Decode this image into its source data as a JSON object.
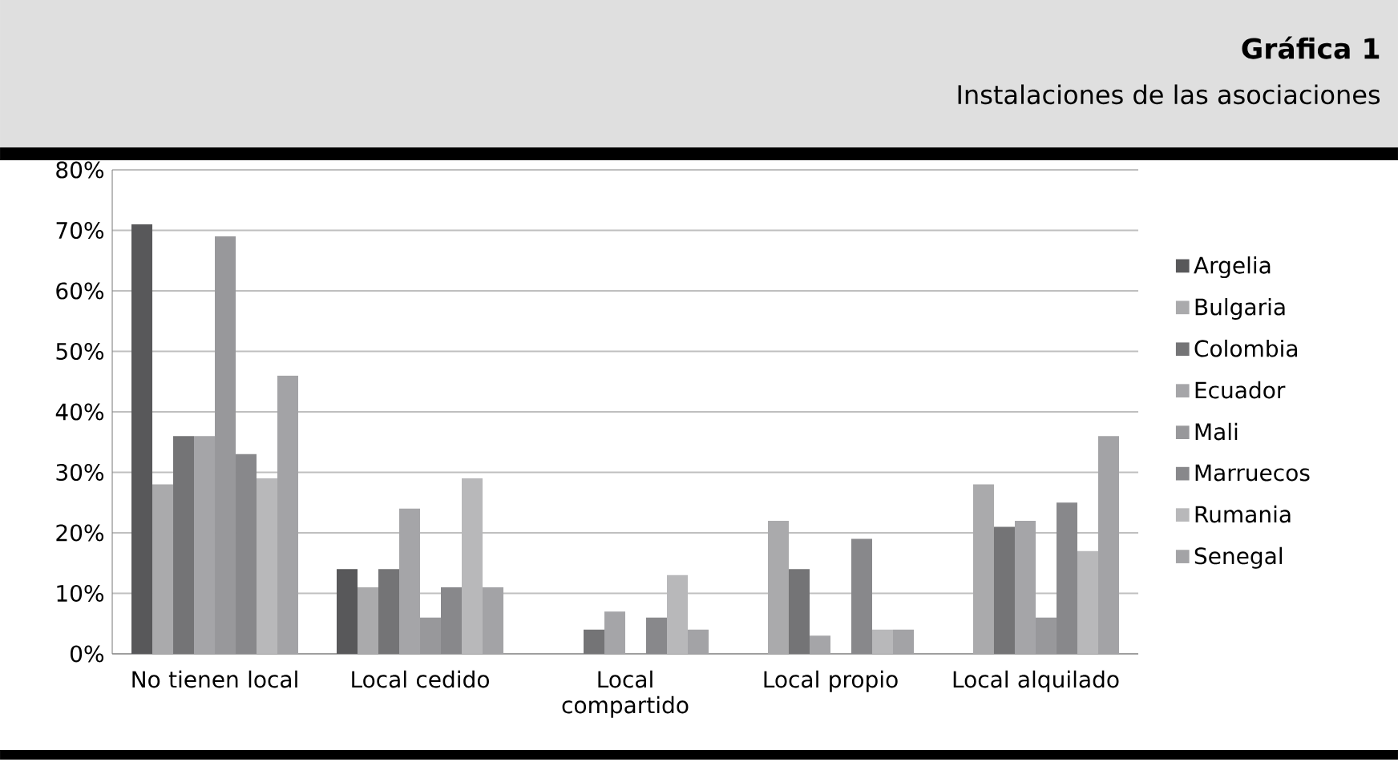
{
  "chart_data": {
    "type": "bar",
    "title": "Gráfica 1",
    "subtitle": "Instalaciones de las asociaciones",
    "categories": [
      "No tienen local",
      "Local cedido",
      "Local compartido",
      "Local propio",
      "Local alquilado"
    ],
    "series": [
      {
        "name": "Argelia",
        "color": "#58585a",
        "values": [
          71,
          14,
          null,
          null,
          null
        ]
      },
      {
        "name": "Bulgaria",
        "color": "#aaaaac",
        "values": [
          28,
          11,
          null,
          22,
          28
        ]
      },
      {
        "name": "Colombia",
        "color": "#747476",
        "values": [
          36,
          14,
          4,
          14,
          21
        ]
      },
      {
        "name": "Ecuador",
        "color": "#a5a5a8",
        "values": [
          36,
          24,
          7,
          3,
          22
        ]
      },
      {
        "name": "Mali",
        "color": "#98989b",
        "values": [
          69,
          6,
          null,
          null,
          6
        ]
      },
      {
        "name": "Marruecos",
        "color": "#88888b",
        "values": [
          33,
          11,
          6,
          19,
          25
        ]
      },
      {
        "name": "Rumania",
        "color": "#b8b8ba",
        "values": [
          29,
          29,
          13,
          4,
          17
        ]
      },
      {
        "name": "Senegal",
        "color": "#a3a3a6",
        "values": [
          46,
          11,
          4,
          4,
          36
        ]
      }
    ],
    "ylim": [
      0,
      80
    ],
    "yticks": [
      {
        "value": 0,
        "label": "0%"
      },
      {
        "value": 10,
        "label": "10%"
      },
      {
        "value": 20,
        "label": "20%"
      },
      {
        "value": 30,
        "label": "30%"
      },
      {
        "value": 40,
        "label": "40%"
      },
      {
        "value": 50,
        "label": "50%"
      },
      {
        "value": 60,
        "label": "60%"
      },
      {
        "value": 70,
        "label": "70%"
      },
      {
        "value": 80,
        "label": "80%"
      }
    ],
    "grid": "y",
    "legend": "right"
  }
}
